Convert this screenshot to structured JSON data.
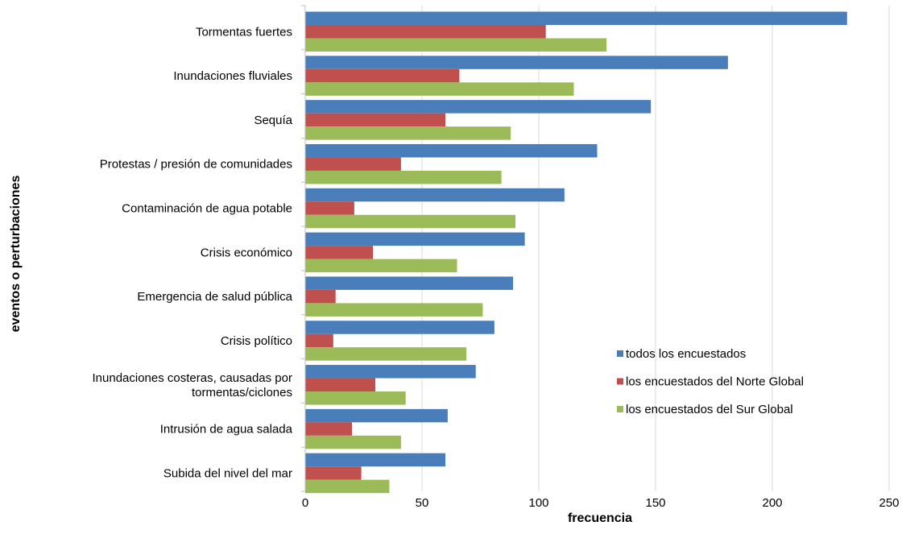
{
  "chart_data": {
    "type": "bar",
    "orientation": "horizontal",
    "title": "",
    "xlabel": "frecuencia",
    "ylabel": "eventos o perturbaciones",
    "xlim": [
      0,
      250
    ],
    "xticks": [
      0,
      50,
      100,
      150,
      200,
      250
    ],
    "grid": true,
    "legend_position": "bottom-right",
    "categories": [
      "Tormentas fuertes",
      "Inundaciones fluviales",
      "Sequía",
      "Protestas / presión de comunidades",
      "Contaminación de agua potable",
      "Crisis económico",
      "Emergencia de salud pública",
      "Crisis político",
      "Inundaciones costeras, causadas por tormentas/ciclones",
      "Intrusión de agua salada",
      "Subida del nivel del mar"
    ],
    "category_lines": [
      [
        "Tormentas fuertes"
      ],
      [
        "Inundaciones fluviales"
      ],
      [
        "Sequía"
      ],
      [
        "Protestas / presión de comunidades"
      ],
      [
        "Contaminación de agua potable"
      ],
      [
        "Crisis económico"
      ],
      [
        "Emergencia de salud pública"
      ],
      [
        "Crisis político"
      ],
      [
        "Inundaciones costeras, causadas por",
        "tormentas/ciclones"
      ],
      [
        "Intrusión de agua salada"
      ],
      [
        "Subida del nivel del mar"
      ]
    ],
    "series": [
      {
        "name": "todos los encuestados",
        "color": "#4a7ebb",
        "values": [
          232,
          181,
          148,
          125,
          111,
          94,
          89,
          81,
          73,
          61,
          60
        ]
      },
      {
        "name": "los encuestados del Norte Global",
        "color": "#c0504d",
        "values": [
          103,
          66,
          60,
          41,
          21,
          29,
          13,
          12,
          30,
          20,
          24
        ]
      },
      {
        "name": "los encuestados del Sur Global",
        "color": "#9bbb59",
        "values": [
          129,
          115,
          88,
          84,
          90,
          65,
          76,
          69,
          43,
          41,
          36
        ]
      }
    ]
  }
}
